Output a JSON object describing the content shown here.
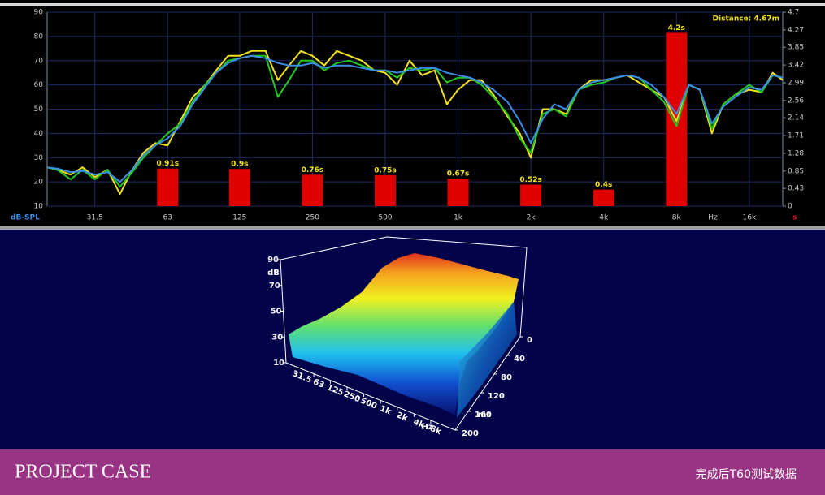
{
  "chart_data": [
    {
      "type": "line",
      "annotation": "Distance: 4.67m",
      "xscale": "log",
      "xlim": [
        20,
        22000
      ],
      "xticks": [
        31.5,
        63,
        125,
        250,
        500,
        {
          "value": 1000,
          "label": "1k"
        },
        {
          "value": 2000,
          "label": "2k"
        },
        {
          "value": 4000,
          "label": "4k"
        },
        {
          "value": 8000,
          "label": "8k"
        },
        {
          "value": 16000,
          "label": "16k"
        }
      ],
      "xlabel": "Hz",
      "ylim": [
        10,
        90
      ],
      "yticks": [
        10,
        20,
        30,
        40,
        50,
        60,
        70,
        80,
        90
      ],
      "ylabel": "dB-SPL",
      "y2lim": [
        0,
        4.7
      ],
      "y2ticks": [
        0,
        0.43,
        0.85,
        1.28,
        1.71,
        2.14,
        2.56,
        2.99,
        3.42,
        3.85,
        4.27,
        4.7
      ],
      "y2label": "s",
      "grid": true,
      "x": [
        20,
        22,
        25,
        28,
        31.5,
        35.5,
        40,
        45,
        50,
        56,
        63,
        71,
        80,
        90,
        100,
        112,
        125,
        140,
        160,
        180,
        200,
        224,
        250,
        280,
        315,
        355,
        400,
        450,
        500,
        560,
        630,
        710,
        800,
        900,
        1000,
        1120,
        1250,
        1400,
        1600,
        1800,
        2000,
        2240,
        2500,
        2800,
        3150,
        3550,
        4000,
        4500,
        5000,
        5600,
        6300,
        7100,
        8000,
        9000,
        10000,
        11200,
        12500,
        14000,
        16000,
        18000,
        20000,
        22000
      ],
      "series": [
        {
          "color": "#f2e21c",
          "values": [
            26,
            25,
            23,
            26,
            22,
            25,
            15,
            25,
            32,
            36,
            35,
            45,
            55,
            60,
            66,
            72,
            72,
            74,
            74,
            62,
            68,
            74,
            72,
            68,
            74,
            72,
            70,
            66,
            65,
            60,
            70,
            64,
            66,
            52,
            58,
            62,
            62,
            56,
            47,
            40,
            30,
            50,
            50,
            48,
            58,
            62,
            62,
            63,
            64,
            61,
            58,
            55,
            45,
            60,
            58,
            40,
            52,
            56,
            58,
            57,
            65,
            62
          ]
        },
        {
          "color": "#22c81e",
          "values": [
            26,
            25,
            21,
            25,
            21,
            25,
            18,
            24,
            30,
            35,
            40,
            44,
            53,
            60,
            65,
            70,
            71,
            72,
            72,
            55,
            62,
            70,
            70,
            66,
            69,
            70,
            68,
            66,
            66,
            63,
            67,
            66,
            67,
            61,
            63,
            63,
            60,
            55,
            48,
            38,
            32,
            48,
            50,
            47,
            58,
            60,
            61,
            63,
            64,
            63,
            58,
            53,
            43,
            60,
            58,
            42,
            52,
            56,
            60,
            57,
            64,
            63
          ]
        },
        {
          "color": "#3a8ee8",
          "values": [
            26,
            25.5,
            24,
            24.5,
            23,
            24,
            20,
            25,
            31,
            35,
            38,
            43,
            52,
            59,
            65,
            69,
            71,
            72,
            71,
            69,
            68,
            68,
            69,
            67,
            68,
            68,
            67,
            66,
            66,
            65,
            66,
            67,
            67,
            65,
            64,
            63,
            61,
            58,
            53,
            45,
            36,
            46,
            52,
            50,
            58,
            61,
            62,
            63,
            64,
            63,
            60,
            55,
            48,
            60,
            58,
            44,
            51,
            55,
            59,
            58,
            64,
            63
          ]
        },
        {
          "type": "bar",
          "axis": "y2",
          "color": "#e00000",
          "x": [
            63,
            125,
            250,
            500,
            1000,
            2000,
            4000,
            8000
          ],
          "values": [
            0.91,
            0.9,
            0.76,
            0.75,
            0.67,
            0.52,
            0.4,
            4.2
          ],
          "value_labels": [
            "0.91s",
            "0.9s",
            "0.76s",
            "0.75s",
            "0.67s",
            "0.52s",
            "0.4s",
            "4.2s"
          ]
        }
      ]
    },
    {
      "type": "surface",
      "xscale": "log",
      "xlim": [
        20,
        22000
      ],
      "xticks": [
        31.5,
        63,
        125,
        250,
        500,
        {
          "value": 1000,
          "label": "1k"
        },
        {
          "value": 2000,
          "label": "2k"
        },
        {
          "value": 4000,
          "label": "4k"
        },
        {
          "value": 8000,
          "label": "8k"
        }
      ],
      "xlabel": "Hz",
      "ylim": [
        0,
        200
      ],
      "yticks": [
        0,
        40,
        80,
        120,
        160,
        200
      ],
      "ylabel": "ms",
      "zlim": [
        10,
        90
      ],
      "zticks": [
        10,
        30,
        50,
        70,
        90
      ],
      "zlabel": "dB"
    }
  ],
  "banner": {
    "title": "PROJECT CASE",
    "caption": "完成后T60测试数据"
  }
}
